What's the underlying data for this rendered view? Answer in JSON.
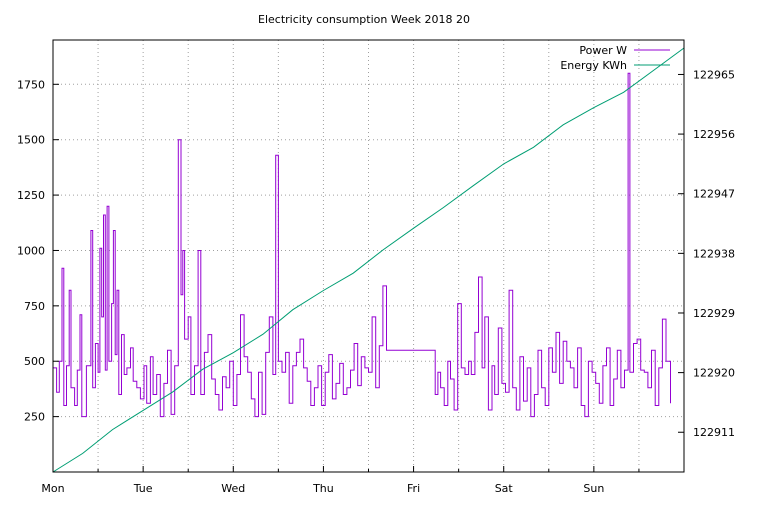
{
  "chart_data": {
    "type": "line",
    "title": "Electricity consumption Week 2018 20",
    "xlabel": "",
    "ylabel": "",
    "x_tick_labels": [
      "Mon",
      "Tue",
      "Wed",
      "Thu",
      "Fri",
      "Sat",
      "Sun"
    ],
    "xlim": [
      0,
      7
    ],
    "ylim_left": [
      0,
      1950
    ],
    "yticks_left": [
      250,
      500,
      750,
      1000,
      1250,
      1500,
      1750
    ],
    "ylim_right": [
      122905,
      122970.2
    ],
    "yticks_right": [
      122911,
      122920,
      122929,
      122938,
      122947,
      122956,
      122965
    ],
    "grid": true,
    "legend_position": "top-right",
    "series": [
      {
        "name": "Power W",
        "axis": "left",
        "color": "#9400d3",
        "style": "steps",
        "points": [
          [
            0.0,
            470
          ],
          [
            0.04,
            360
          ],
          [
            0.07,
            500
          ],
          [
            0.1,
            920
          ],
          [
            0.12,
            300
          ],
          [
            0.15,
            480
          ],
          [
            0.18,
            820
          ],
          [
            0.2,
            380
          ],
          [
            0.24,
            300
          ],
          [
            0.27,
            460
          ],
          [
            0.3,
            710
          ],
          [
            0.32,
            250
          ],
          [
            0.37,
            480
          ],
          [
            0.42,
            1090
          ],
          [
            0.44,
            380
          ],
          [
            0.47,
            580
          ],
          [
            0.5,
            450
          ],
          [
            0.52,
            1010
          ],
          [
            0.54,
            700
          ],
          [
            0.56,
            1160
          ],
          [
            0.58,
            460
          ],
          [
            0.6,
            1200
          ],
          [
            0.62,
            500
          ],
          [
            0.65,
            760
          ],
          [
            0.67,
            1090
          ],
          [
            0.69,
            530
          ],
          [
            0.71,
            820
          ],
          [
            0.73,
            350
          ],
          [
            0.76,
            620
          ],
          [
            0.79,
            440
          ],
          [
            0.82,
            470
          ],
          [
            0.86,
            560
          ],
          [
            0.89,
            410
          ],
          [
            0.93,
            380
          ],
          [
            0.97,
            330
          ],
          [
            1.01,
            480
          ],
          [
            1.04,
            310
          ],
          [
            1.08,
            520
          ],
          [
            1.11,
            350
          ],
          [
            1.15,
            440
          ],
          [
            1.19,
            250
          ],
          [
            1.23,
            400
          ],
          [
            1.27,
            550
          ],
          [
            1.31,
            260
          ],
          [
            1.35,
            480
          ],
          [
            1.39,
            1500
          ],
          [
            1.42,
            800
          ],
          [
            1.44,
            1000
          ],
          [
            1.46,
            600
          ],
          [
            1.5,
            700
          ],
          [
            1.53,
            350
          ],
          [
            1.57,
            480
          ],
          [
            1.61,
            1000
          ],
          [
            1.64,
            350
          ],
          [
            1.68,
            540
          ],
          [
            1.72,
            620
          ],
          [
            1.76,
            420
          ],
          [
            1.8,
            350
          ],
          [
            1.84,
            280
          ],
          [
            1.88,
            430
          ],
          [
            1.92,
            380
          ],
          [
            1.96,
            500
          ],
          [
            2.0,
            300
          ],
          [
            2.04,
            440
          ],
          [
            2.08,
            710
          ],
          [
            2.12,
            520
          ],
          [
            2.16,
            450
          ],
          [
            2.2,
            330
          ],
          [
            2.24,
            250
          ],
          [
            2.28,
            450
          ],
          [
            2.32,
            260
          ],
          [
            2.36,
            540
          ],
          [
            2.4,
            700
          ],
          [
            2.44,
            440
          ],
          [
            2.47,
            1430
          ],
          [
            2.5,
            500
          ],
          [
            2.54,
            450
          ],
          [
            2.58,
            540
          ],
          [
            2.62,
            310
          ],
          [
            2.66,
            480
          ],
          [
            2.7,
            540
          ],
          [
            2.74,
            600
          ],
          [
            2.78,
            470
          ],
          [
            2.82,
            410
          ],
          [
            2.86,
            300
          ],
          [
            2.9,
            380
          ],
          [
            2.94,
            480
          ],
          [
            2.98,
            300
          ],
          [
            3.02,
            450
          ],
          [
            3.06,
            530
          ],
          [
            3.1,
            330
          ],
          [
            3.14,
            400
          ],
          [
            3.18,
            490
          ],
          [
            3.22,
            350
          ],
          [
            3.26,
            380
          ],
          [
            3.3,
            460
          ],
          [
            3.34,
            580
          ],
          [
            3.38,
            390
          ],
          [
            3.42,
            520
          ],
          [
            3.46,
            470
          ],
          [
            3.5,
            450
          ],
          [
            3.54,
            700
          ],
          [
            3.58,
            380
          ],
          [
            3.62,
            570
          ],
          [
            3.66,
            840
          ],
          [
            3.7,
            550
          ],
          [
            4.2,
            550
          ],
          [
            4.24,
            350
          ],
          [
            4.27,
            450
          ],
          [
            4.3,
            380
          ],
          [
            4.34,
            300
          ],
          [
            4.38,
            500
          ],
          [
            4.41,
            420
          ],
          [
            4.45,
            280
          ],
          [
            4.49,
            760
          ],
          [
            4.53,
            470
          ],
          [
            4.57,
            440
          ],
          [
            4.61,
            500
          ],
          [
            4.64,
            440
          ],
          [
            4.68,
            630
          ],
          [
            4.72,
            880
          ],
          [
            4.76,
            470
          ],
          [
            4.79,
            700
          ],
          [
            4.83,
            280
          ],
          [
            4.87,
            480
          ],
          [
            4.9,
            350
          ],
          [
            4.94,
            650
          ],
          [
            4.98,
            400
          ],
          [
            5.02,
            360
          ],
          [
            5.06,
            820
          ],
          [
            5.1,
            380
          ],
          [
            5.14,
            280
          ],
          [
            5.18,
            520
          ],
          [
            5.22,
            320
          ],
          [
            5.26,
            470
          ],
          [
            5.3,
            250
          ],
          [
            5.34,
            350
          ],
          [
            5.38,
            550
          ],
          [
            5.42,
            380
          ],
          [
            5.46,
            300
          ],
          [
            5.5,
            560
          ],
          [
            5.54,
            450
          ],
          [
            5.58,
            630
          ],
          [
            5.62,
            400
          ],
          [
            5.66,
            590
          ],
          [
            5.7,
            500
          ],
          [
            5.74,
            470
          ],
          [
            5.78,
            380
          ],
          [
            5.82,
            560
          ],
          [
            5.86,
            300
          ],
          [
            5.9,
            250
          ],
          [
            5.94,
            500
          ],
          [
            5.98,
            450
          ],
          [
            6.02,
            400
          ],
          [
            6.06,
            310
          ],
          [
            6.1,
            480
          ],
          [
            6.14,
            560
          ],
          [
            6.18,
            300
          ],
          [
            6.22,
            420
          ],
          [
            6.26,
            550
          ],
          [
            6.3,
            380
          ],
          [
            6.34,
            460
          ],
          [
            6.38,
            1800
          ],
          [
            6.4,
            450
          ],
          [
            6.44,
            580
          ],
          [
            6.48,
            600
          ],
          [
            6.52,
            460
          ],
          [
            6.56,
            450
          ],
          [
            6.6,
            380
          ],
          [
            6.64,
            550
          ],
          [
            6.68,
            300
          ],
          [
            6.72,
            470
          ],
          [
            6.76,
            690
          ],
          [
            6.8,
            500
          ],
          [
            6.85,
            310
          ]
        ]
      },
      {
        "name": "Energy KWh",
        "axis": "right",
        "color": "#009e73",
        "style": "line",
        "points": [
          [
            0.0,
            122905.0
          ],
          [
            0.33,
            122907.8
          ],
          [
            0.66,
            122911.4
          ],
          [
            1.0,
            122914.3
          ],
          [
            1.33,
            122917.1
          ],
          [
            1.66,
            122920.5
          ],
          [
            2.0,
            122923.0
          ],
          [
            2.33,
            122925.8
          ],
          [
            2.66,
            122929.5
          ],
          [
            3.0,
            122932.4
          ],
          [
            3.33,
            122935.0
          ],
          [
            3.66,
            122938.5
          ],
          [
            4.0,
            122941.8
          ],
          [
            4.33,
            122944.9
          ],
          [
            4.66,
            122948.2
          ],
          [
            5.0,
            122951.5
          ],
          [
            5.33,
            122954.0
          ],
          [
            5.66,
            122957.4
          ],
          [
            6.0,
            122960.0
          ],
          [
            6.33,
            122962.3
          ],
          [
            6.66,
            122965.6
          ],
          [
            7.0,
            122969.0
          ]
        ]
      }
    ]
  }
}
